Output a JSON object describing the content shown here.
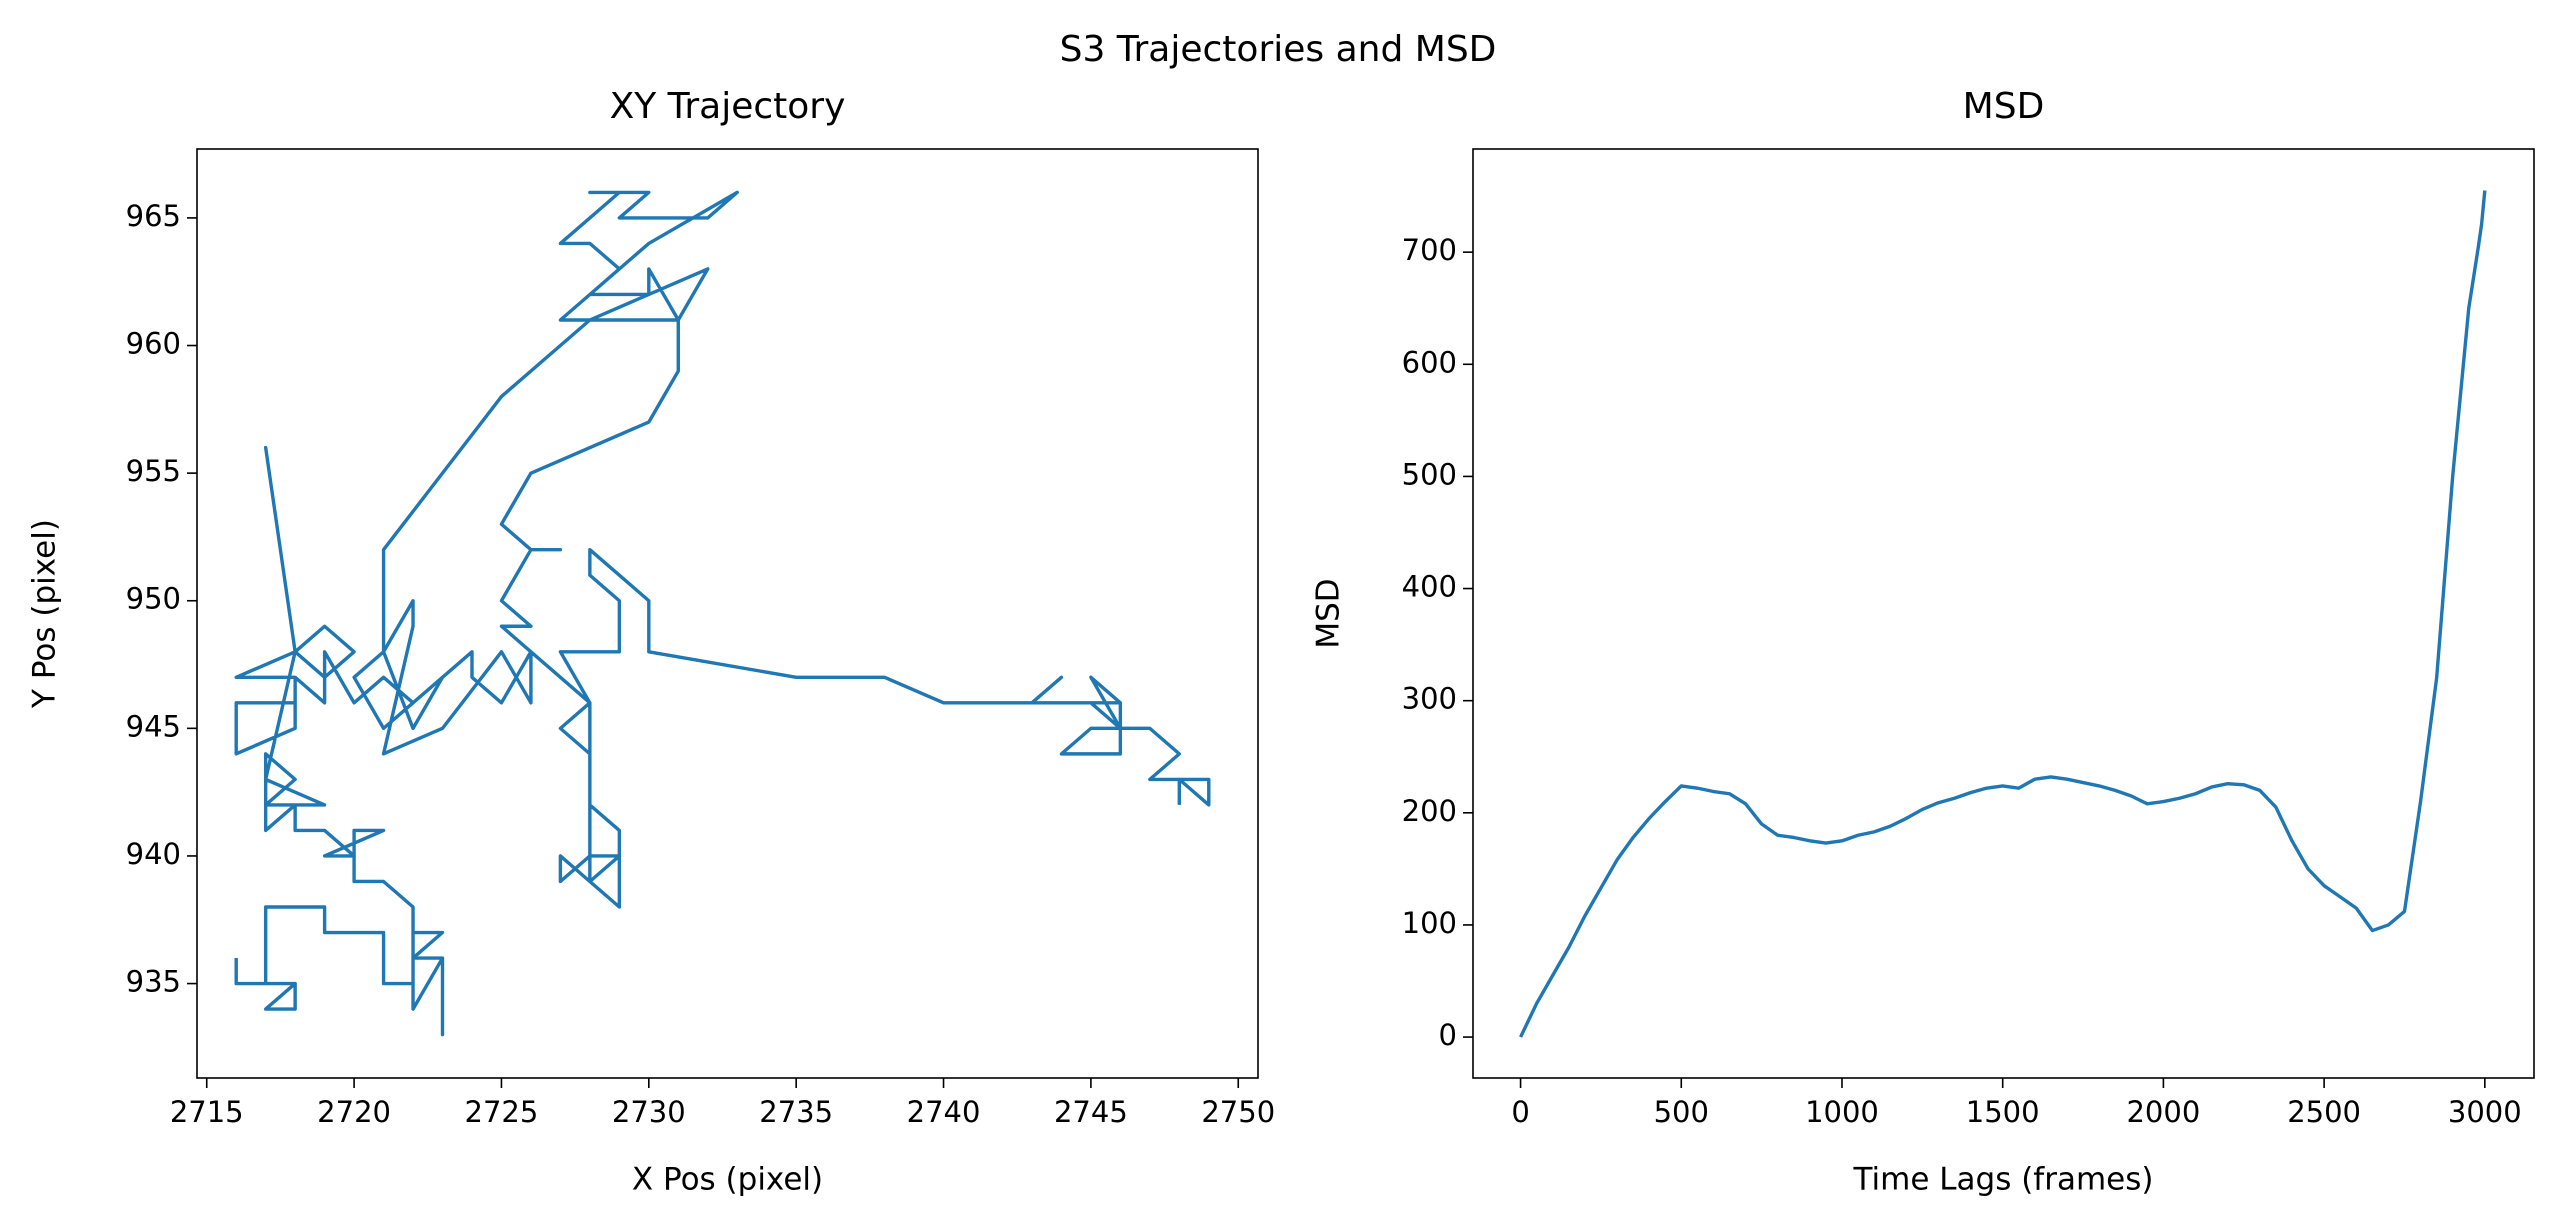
{
  "title": "S3 Trajectories and MSD",
  "chart_data": [
    {
      "type": "line",
      "title": "XY Trajectory",
      "x_label": "X Pos (pixel)",
      "y_label": "Y Pos (pixel)",
      "xlim": [
        2714.67,
        2750.67
      ],
      "ylim": [
        931.3,
        967.7
      ],
      "xticks": [
        2715,
        2720,
        2725,
        2730,
        2735,
        2740,
        2745,
        2750
      ],
      "yticks": [
        935,
        940,
        945,
        950,
        955,
        960,
        965
      ],
      "series": [
        {
          "color": "#1f77b4",
          "x": [
            2716,
            2716,
            2718,
            2718,
            2717,
            2718,
            2717,
            2717,
            2719,
            2719,
            2721,
            2721,
            2722,
            2722,
            2723,
            2722,
            2723,
            2723,
            2723,
            2722,
            2722,
            2721,
            2720,
            2720,
            2721,
            2719,
            2720,
            2719,
            2718,
            2718,
            2717,
            2717,
            2718,
            2717,
            2719,
            2717,
            2718,
            2717,
            2718,
            2719,
            2720,
            2719,
            2718,
            2716,
            2718,
            2718,
            2716,
            2716,
            2718,
            2718,
            2719,
            2719,
            2720,
            2721,
            2722,
            2721,
            2720,
            2721,
            2721,
            2723,
            2725,
            2728,
            2727,
            2728,
            2729,
            2728,
            2727,
            2728,
            2729,
            2728,
            2730,
            2729,
            2732,
            2733,
            2730,
            2728,
            2730,
            2730,
            2731,
            2728,
            2732,
            2731,
            2731,
            2730,
            2726,
            2725,
            2726,
            2727,
            2726,
            2725,
            2726,
            2725,
            2726,
            2725,
            2724,
            2724,
            2722,
            2723,
            2722,
            2721,
            2722,
            2722,
            2721,
            2723,
            2725,
            2726,
            2726,
            2727,
            2728,
            2727,
            2728,
            2728,
            2729,
            2729,
            2728,
            2727,
            2727,
            2728,
            2729,
            2728,
            2728,
            2727,
            2729,
            2729,
            2728,
            2728,
            2729,
            2730,
            2730,
            2735,
            2738,
            2740,
            2743,
            2744,
            2743,
            2746,
            2745,
            2746,
            2745,
            2746,
            2746,
            2744,
            2745,
            2747,
            2748,
            2747,
            2749,
            2749,
            2748,
            2748
          ],
          "values": [
            936,
            935,
            935,
            934,
            934,
            935,
            935,
            938,
            938,
            937,
            937,
            935,
            935,
            937,
            937,
            936,
            936,
            933,
            936,
            934,
            938,
            939,
            939,
            941,
            941,
            940,
            940,
            941,
            941,
            942,
            941,
            944,
            943,
            942,
            942,
            943,
            948,
            956,
            948,
            947,
            948,
            949,
            948,
            947,
            947,
            946,
            946,
            944,
            945,
            947,
            946,
            948,
            946,
            947,
            946,
            945,
            947,
            948,
            952,
            955,
            958,
            961,
            961,
            962,
            963,
            964,
            964,
            965,
            966,
            966,
            966,
            965,
            965,
            966,
            964,
            962,
            962,
            963,
            961,
            961,
            963,
            961,
            959,
            957,
            955,
            953,
            952,
            952,
            952,
            950,
            949,
            949,
            948,
            946,
            947,
            948,
            946,
            947,
            945,
            948,
            950,
            949,
            944,
            945,
            948,
            946,
            948,
            947,
            946,
            945,
            944,
            942,
            941,
            938,
            939,
            940,
            939,
            940,
            940,
            939,
            946,
            948,
            948,
            950,
            951,
            952,
            951,
            950,
            948,
            947,
            947,
            946,
            946,
            947,
            946,
            946,
            947,
            945,
            946,
            946,
            944,
            944,
            945,
            945,
            944,
            943,
            943,
            942,
            943,
            942
          ]
        }
      ]
    },
    {
      "type": "line",
      "title": "MSD",
      "x_label": "Time Lags (frames)",
      "y_label": "MSD",
      "xlim": [
        -148,
        3153
      ],
      "ylim": [
        -36.5,
        792
      ],
      "xticks": [
        0,
        500,
        1000,
        1500,
        2000,
        2500,
        3000
      ],
      "yticks": [
        0,
        100,
        200,
        300,
        400,
        500,
        600,
        700
      ],
      "series": [
        {
          "color": "#1f77b4",
          "x": [
            0,
            50,
            100,
            150,
            200,
            250,
            300,
            350,
            400,
            450,
            500,
            550,
            600,
            650,
            700,
            750,
            800,
            850,
            900,
            950,
            1000,
            1050,
            1100,
            1150,
            1200,
            1250,
            1300,
            1350,
            1400,
            1450,
            1500,
            1550,
            1600,
            1650,
            1700,
            1750,
            1800,
            1850,
            1900,
            1950,
            2000,
            2050,
            2100,
            2150,
            2200,
            2250,
            2300,
            2350,
            2400,
            2450,
            2500,
            2550,
            2600,
            2650,
            2700,
            2750,
            2800,
            2850,
            2900,
            2950,
            2980,
            2990,
            3000
          ],
          "values": [
            0,
            30,
            55,
            80,
            108,
            133,
            158,
            178,
            195,
            210,
            224,
            222,
            219,
            217,
            208,
            190,
            180,
            178,
            175,
            173,
            175,
            180,
            183,
            188,
            195,
            203,
            209,
            213,
            218,
            222,
            224,
            222,
            230,
            232,
            230,
            227,
            224,
            220,
            215,
            208,
            210,
            213,
            217,
            223,
            226,
            225,
            220,
            205,
            175,
            150,
            135,
            125,
            115,
            95,
            100,
            112,
            210,
            320,
            500,
            650,
            705,
            725,
            755
          ]
        }
      ]
    }
  ]
}
